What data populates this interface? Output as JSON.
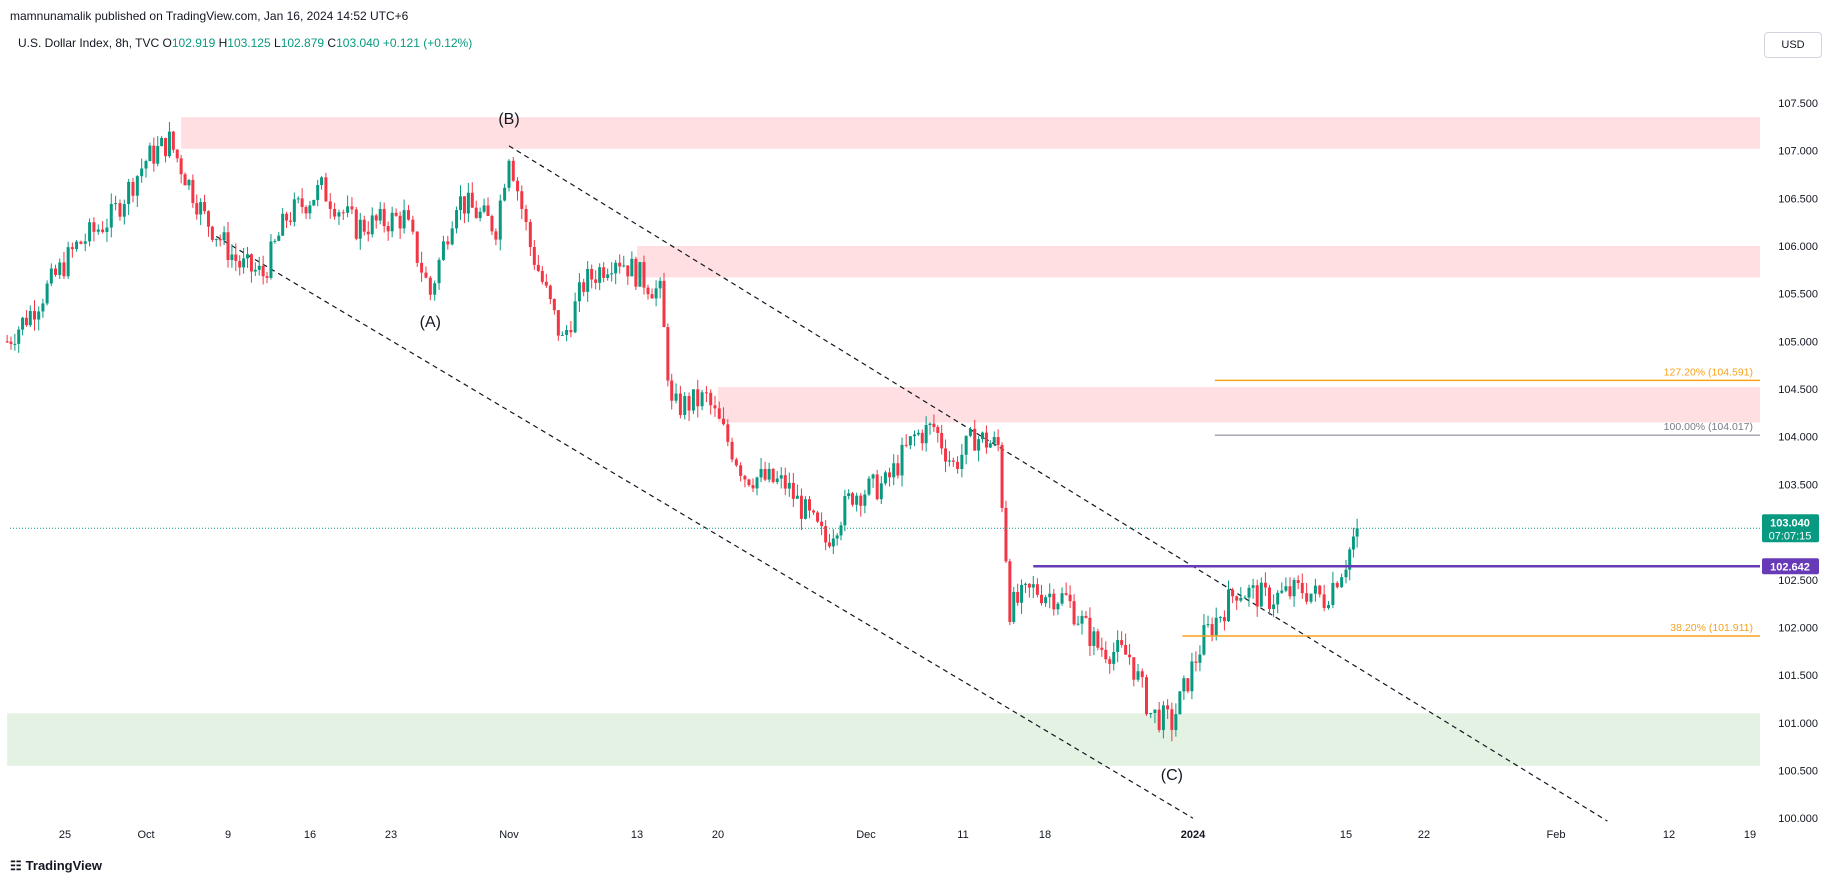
{
  "header": {
    "publisher": "mamnunamalik published on TradingView.com, Jan 16, 2024 14:52 UTC+6"
  },
  "legend": {
    "symbol": "U.S. Dollar Index, 8h, TVC",
    "open_label": "O",
    "open": "102.919",
    "high_label": "H",
    "high": "103.125",
    "low_label": "L",
    "low": "102.879",
    "close_label": "C",
    "close": "103.040",
    "change": "+0.121 (+0.12%)"
  },
  "currency_button": "USD",
  "footer": {
    "brand": "TradingView"
  },
  "colors": {
    "up": "#089981",
    "down": "#f23645",
    "supply": "#ffdfe1",
    "demand": "#e3f2e3",
    "fib_orange": "#f7a21b",
    "fib_gray": "#787b86",
    "level": "#673ab7"
  },
  "chart_data": {
    "type": "candlestick",
    "y_ticks": [
      "100.000",
      "100.500",
      "101.000",
      "101.500",
      "102.000",
      "102.500",
      "103.000",
      "103.500",
      "104.000",
      "104.500",
      "105.000",
      "105.500",
      "106.000",
      "106.500",
      "107.000",
      "107.500"
    ],
    "ylim": [
      99.95,
      107.95
    ],
    "x_ticks": [
      {
        "label": "25",
        "date": "2023-09-25"
      },
      {
        "label": "Oct",
        "date": "2023-10-02"
      },
      {
        "label": "9",
        "date": "2023-10-09"
      },
      {
        "label": "16",
        "date": "2023-10-16"
      },
      {
        "label": "23",
        "date": "2023-10-23"
      },
      {
        "label": "Nov",
        "date": "2023-11-01"
      },
      {
        "label": "13",
        "date": "2023-11-13"
      },
      {
        "label": "20",
        "date": "2023-11-20"
      },
      {
        "label": "Dec",
        "date": "2023-12-01"
      },
      {
        "label": "11",
        "date": "2023-12-11"
      },
      {
        "label": "18",
        "date": "2023-12-18"
      },
      {
        "label": "2024",
        "date": "2024-01-01"
      },
      {
        "label": "15",
        "date": "2024-01-15"
      },
      {
        "label": "22",
        "date": "2024-01-22"
      },
      {
        "label": "Feb",
        "date": "2024-02-01"
      },
      {
        "label": "12",
        "date": "2024-02-12"
      },
      {
        "label": "19",
        "date": "2024-02-19"
      }
    ],
    "price_path": [
      {
        "date": "2023-09-20",
        "close": 105.0
      },
      {
        "date": "2023-09-22",
        "close": 105.3
      },
      {
        "date": "2023-09-26",
        "close": 106.0
      },
      {
        "date": "2023-09-29",
        "close": 106.3
      },
      {
        "date": "2023-10-02",
        "close": 106.9
      },
      {
        "date": "2023-10-04",
        "close": 107.1
      },
      {
        "date": "2023-10-07",
        "close": 106.3
      },
      {
        "date": "2023-10-10",
        "close": 105.8
      },
      {
        "date": "2023-10-12",
        "close": 105.7
      },
      {
        "date": "2023-10-14",
        "close": 106.3
      },
      {
        "date": "2023-10-17",
        "close": 106.6
      },
      {
        "date": "2023-10-20",
        "close": 106.2
      },
      {
        "date": "2023-10-24",
        "close": 106.3
      },
      {
        "date": "2023-10-26",
        "close": 105.5
      },
      {
        "date": "2023-10-28",
        "close": 106.5
      },
      {
        "date": "2023-10-31",
        "close": 106.2
      },
      {
        "date": "2023-11-01",
        "close": 107.0
      },
      {
        "date": "2023-11-03",
        "close": 106.0
      },
      {
        "date": "2023-11-06",
        "close": 105.0
      },
      {
        "date": "2023-11-08",
        "close": 105.6
      },
      {
        "date": "2023-11-11",
        "close": 105.9
      },
      {
        "date": "2023-11-15",
        "close": 105.5
      },
      {
        "date": "2023-11-16",
        "close": 104.3
      },
      {
        "date": "2023-11-19",
        "close": 104.4
      },
      {
        "date": "2023-11-22",
        "close": 103.6
      },
      {
        "date": "2023-11-25",
        "close": 103.5
      },
      {
        "date": "2023-11-28",
        "close": 102.9
      },
      {
        "date": "2023-11-30",
        "close": 103.4
      },
      {
        "date": "2023-12-03",
        "close": 103.5
      },
      {
        "date": "2023-12-06",
        "close": 104.0
      },
      {
        "date": "2023-12-08",
        "close": 104.1
      },
      {
        "date": "2023-12-10",
        "close": 103.7
      },
      {
        "date": "2023-12-12",
        "close": 104.0
      },
      {
        "date": "2023-12-14",
        "close": 103.9
      },
      {
        "date": "2023-12-15",
        "close": 102.2
      },
      {
        "date": "2023-12-17",
        "close": 102.4
      },
      {
        "date": "2023-12-20",
        "close": 102.3
      },
      {
        "date": "2023-12-23",
        "close": 101.8
      },
      {
        "date": "2023-12-26",
        "close": 101.7
      },
      {
        "date": "2023-12-28",
        "close": 101.1
      },
      {
        "date": "2023-12-30",
        "close": 101.0
      },
      {
        "date": "2024-01-02",
        "close": 101.9
      },
      {
        "date": "2024-01-05",
        "close": 102.4
      },
      {
        "date": "2024-01-08",
        "close": 102.3
      },
      {
        "date": "2024-01-11",
        "close": 102.4
      },
      {
        "date": "2024-01-13",
        "close": 102.3
      },
      {
        "date": "2024-01-15",
        "close": 102.7
      },
      {
        "date": "2024-01-16",
        "close": 103.04
      }
    ],
    "zones": [
      {
        "type": "supply",
        "from": 107.02,
        "to": 107.35,
        "start_date": "2023-10-05",
        "end_date": "2024-02-22"
      },
      {
        "type": "supply",
        "from": 105.67,
        "to": 106.0,
        "start_date": "2023-11-13",
        "end_date": "2024-02-22"
      },
      {
        "type": "supply",
        "from": 104.15,
        "to": 104.52,
        "start_date": "2023-11-20",
        "end_date": "2024-02-22"
      },
      {
        "type": "demand",
        "from": 100.55,
        "to": 101.1,
        "start_date": "2023-09-20",
        "end_date": "2024-02-22"
      }
    ],
    "fib_levels": [
      {
        "label": "127.20% (104.591)",
        "value": 104.591,
        "color": "#f7a21b",
        "start_date": "2024-01-03"
      },
      {
        "label": "100.00% (104.017)",
        "value": 104.017,
        "color": "#787b86",
        "start_date": "2024-01-03"
      },
      {
        "label": "38.20% (101.911)",
        "value": 101.911,
        "color": "#f7a21b",
        "start_date": "2023-12-31"
      }
    ],
    "horizontal_level": {
      "value": 102.642,
      "label": "102.642",
      "start_date": "2023-12-17",
      "color": "#673ab7"
    },
    "current_price": {
      "value": 103.04,
      "label": "103.040",
      "countdown": "07:07:15"
    },
    "trend_lines": [
      {
        "from": {
          "date": "2023-10-08",
          "price": 106.1
        },
        "to": {
          "date": "2024-01-01",
          "price": 100.0
        }
      },
      {
        "from": {
          "date": "2023-11-01",
          "price": 107.05
        },
        "to": {
          "date": "2024-02-06",
          "price": 99.97
        }
      }
    ],
    "annotations": [
      {
        "text": "(B)",
        "date": "2023-11-01",
        "price": 107.28
      },
      {
        "text": "(A)",
        "date": "2023-10-26",
        "price": 105.15
      },
      {
        "text": "(C)",
        "date": "2023-12-30",
        "price": 100.4
      }
    ]
  }
}
